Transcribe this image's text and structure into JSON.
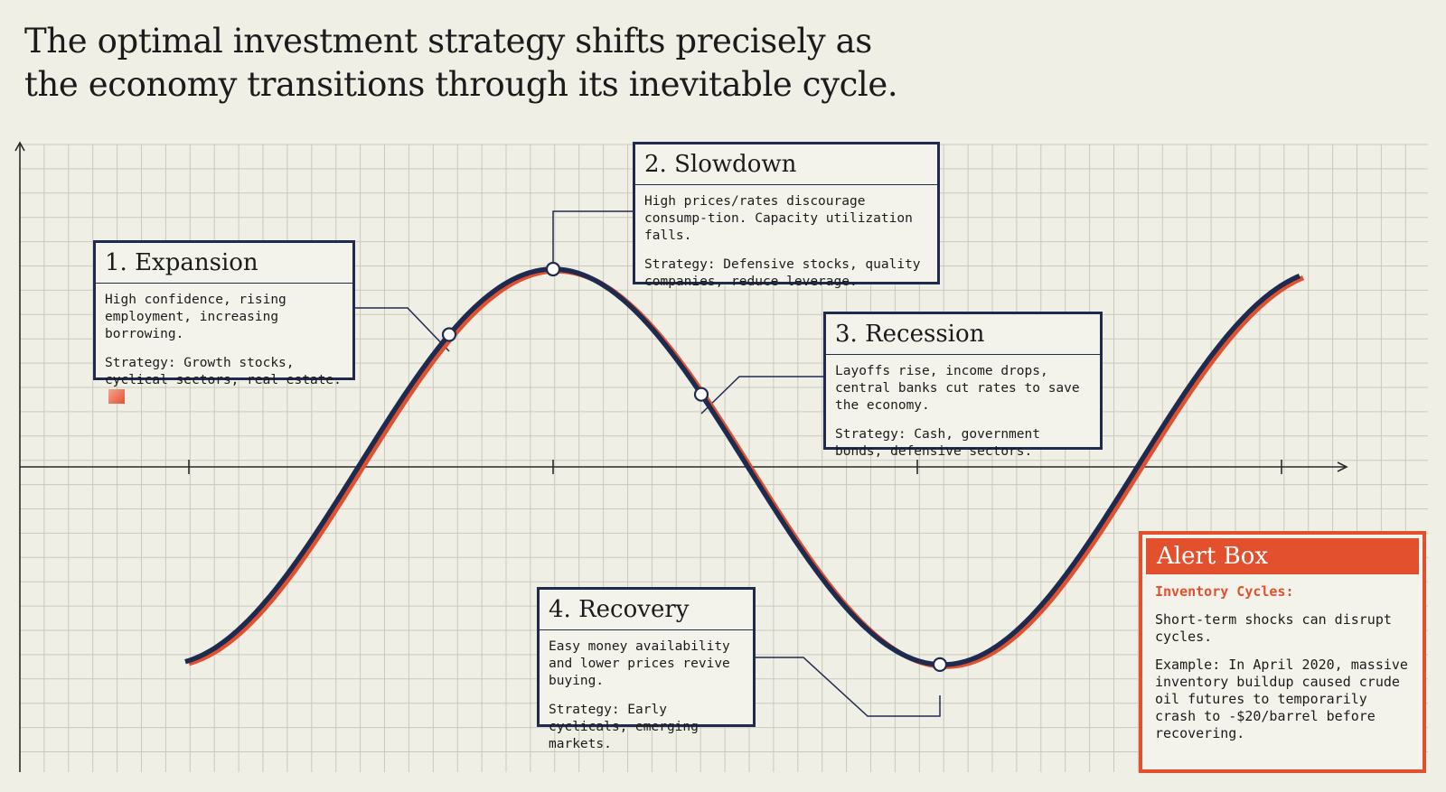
{
  "title": {
    "line1": "The optimal investment strategy shifts precisely as",
    "line2": "the economy transitions through its inevitable cycle."
  },
  "colors": {
    "navy": "#1f2b4e",
    "accent": "#e2502e",
    "background": "#efefe6",
    "grid": "#c9c9bd"
  },
  "chart_data": {
    "type": "line",
    "title": "",
    "xlabel": "",
    "ylabel": "",
    "series": [
      {
        "values": [
          -0.92,
          0.8,
          1.0,
          0.23,
          -0.92,
          0.88
        ]
      },
      {
        "values": [
          -0.92,
          0.8,
          1.0,
          0.23,
          -0.92,
          0.88
        ]
      }
    ],
    "ylim": [
      -1.3,
      1.3
    ],
    "grid": true
  },
  "cards": {
    "expansion": {
      "heading": "1. Expansion",
      "desc": "High confidence, rising employment, increasing borrowing.",
      "strategy": "Strategy: Growth stocks, cyclical sectors, real estate."
    },
    "slowdown": {
      "heading": "2. Slowdown",
      "desc": "High prices/rates discourage consump-tion. Capacity utilization falls.",
      "strategy": "Strategy: Defensive stocks, quality companies, reduce leverage."
    },
    "recession": {
      "heading": "3. Recession",
      "desc": "Layoffs rise, income drops, central banks cut rates to save the economy.",
      "strategy": "Strategy: Cash, government bonds, defensive sectors."
    },
    "recovery": {
      "heading": "4. Recovery",
      "desc": "Easy money availability and lower prices revive buying.",
      "strategy": "Strategy: Early cyclicals, emerging markets."
    }
  },
  "alert": {
    "heading": "Alert Box",
    "subheading": "Inventory Cycles:",
    "text1": "Short-term shocks can disrupt cycles.",
    "text2": "Example: In April 2020, massive inventory buildup caused crude oil futures to temporarily crash to -$20/barrel before recovering."
  }
}
